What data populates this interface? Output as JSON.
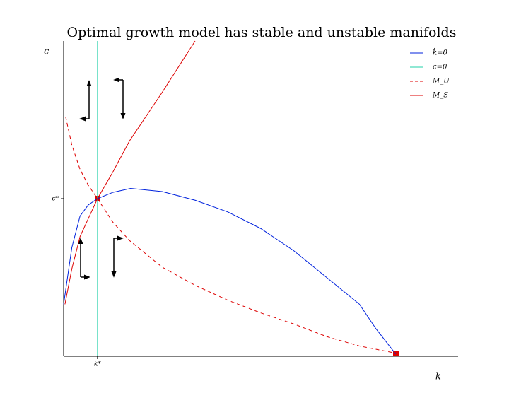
{
  "chart_data": {
    "type": "line",
    "title": "Optimal growth model has stable and unstable manifolds",
    "x_label": "k",
    "y_label": "c",
    "xlim": [
      0,
      12
    ],
    "ylim": [
      0,
      4
    ],
    "xticks": [
      {
        "value": 1.03,
        "label": "k*"
      }
    ],
    "yticks": [
      {
        "value": 2.0,
        "label": "c*"
      }
    ],
    "legend": "upper right",
    "series": [
      {
        "name": "k̇=0",
        "color": "#0022dd",
        "linestyle": "solid",
        "x": [
          0,
          0.25,
          0.5,
          0.75,
          1.03,
          1.5,
          2.04,
          3,
          4,
          5,
          6,
          7,
          8,
          9,
          9.5,
          10.1
        ],
        "values": [
          0.66,
          1.38,
          1.78,
          1.92,
          2.0,
          2.08,
          2.13,
          2.09,
          1.98,
          1.83,
          1.62,
          1.34,
          1.0,
          0.66,
          0.35,
          0.03
        ]
      },
      {
        "name": "ċ=0",
        "color": "#20d0a8",
        "linestyle": "solid",
        "x": [
          1.03,
          1.03
        ],
        "values": [
          0,
          4
        ]
      },
      {
        "name": "M_U",
        "color": "#dd0000",
        "linestyle": "dashed",
        "x": [
          0.06,
          0.25,
          0.5,
          0.75,
          1.03,
          1.5,
          2,
          3,
          4,
          5,
          6,
          7,
          8,
          9,
          10.1
        ],
        "values": [
          3.04,
          2.68,
          2.37,
          2.17,
          2.0,
          1.7,
          1.47,
          1.13,
          0.9,
          0.71,
          0.55,
          0.41,
          0.25,
          0.13,
          0.04
        ]
      },
      {
        "name": "M_S",
        "color": "#dd0000",
        "linestyle": "solid",
        "x": [
          0.04,
          0.25,
          0.5,
          1.03,
          1.5,
          2,
          3,
          4
        ],
        "values": [
          0.66,
          1.11,
          1.52,
          2.0,
          2.34,
          2.73,
          3.35,
          4.0
        ]
      }
    ]
  }
}
